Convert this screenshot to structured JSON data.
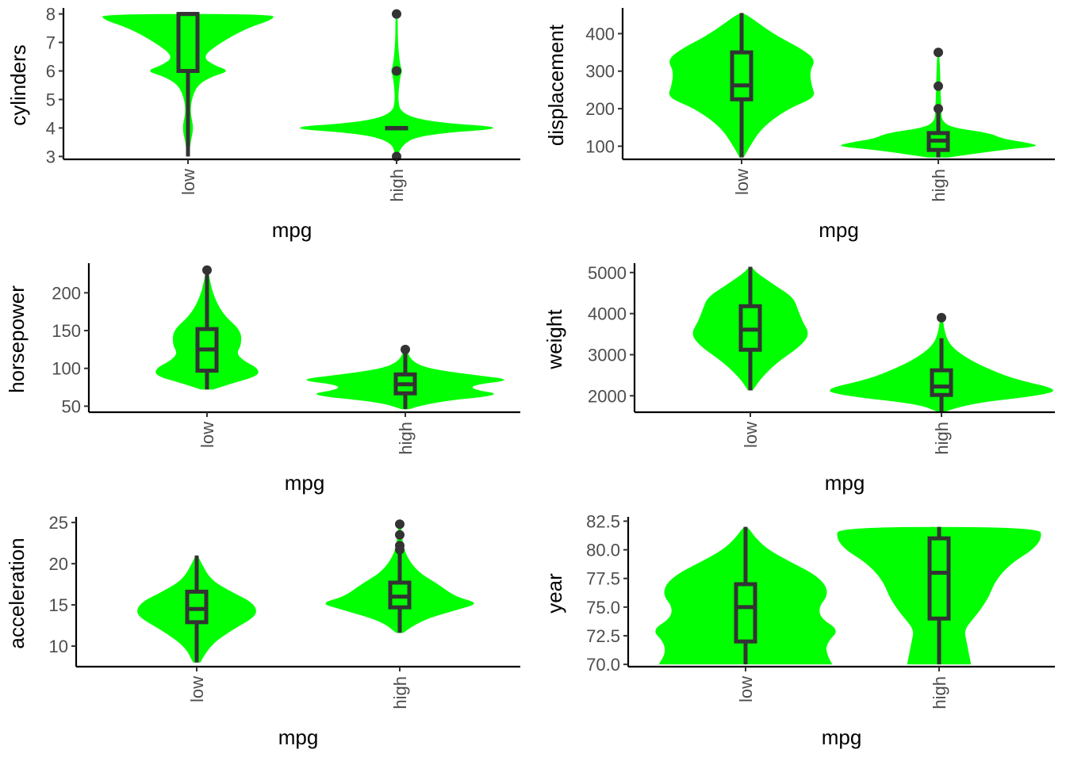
{
  "colors": {
    "violin": "#00ff00",
    "box": "#333333",
    "axis": "#000000",
    "tick_text": "#4d4d4d"
  },
  "chart_data": [
    {
      "type": "violin",
      "xlabel": "mpg",
      "ylabel": "cylinders",
      "categories": [
        "low",
        "high"
      ],
      "ylim": [
        2.9,
        8.1
      ],
      "yticks": [
        3,
        4,
        5,
        6,
        7,
        8
      ],
      "groups": [
        {
          "name": "low",
          "violin": [
            [
              3,
              0.01
            ],
            [
              3.5,
              0.02
            ],
            [
              4,
              0.05
            ],
            [
              4.5,
              0.02
            ],
            [
              5,
              0.03
            ],
            [
              5.5,
              0.08
            ],
            [
              5.8,
              0.2
            ],
            [
              6,
              0.36
            ],
            [
              6.2,
              0.22
            ],
            [
              6.5,
              0.12
            ],
            [
              7,
              0.28
            ],
            [
              7.5,
              0.5
            ],
            [
              7.8,
              0.72
            ],
            [
              8,
              0.74
            ]
          ],
          "box": {
            "lower": 3,
            "q1": 6,
            "median": 8,
            "q3": 8,
            "upper": 8
          },
          "outliers": []
        },
        {
          "name": "high",
          "violin": [
            [
              3,
              0.01
            ],
            [
              3.5,
              0.04
            ],
            [
              3.8,
              0.3
            ],
            [
              4,
              1.0
            ],
            [
              4.2,
              0.3
            ],
            [
              4.5,
              0.04
            ],
            [
              5,
              0.01
            ],
            [
              5.8,
              0.03
            ],
            [
              6,
              0.05
            ],
            [
              6.2,
              0.03
            ],
            [
              7,
              0.01
            ],
            [
              8,
              0.01
            ]
          ],
          "box": {
            "lower": 4,
            "q1": 4,
            "median": 4,
            "q3": 4,
            "upper": 4
          },
          "outliers": [
            3,
            6,
            8
          ]
        }
      ]
    },
    {
      "type": "violin",
      "xlabel": "mpg",
      "ylabel": "displacement",
      "categories": [
        "low",
        "high"
      ],
      "ylim": [
        65,
        460
      ],
      "yticks": [
        100,
        200,
        300,
        400
      ],
      "yticklabels": [
        "100",
        "200",
        "300",
        "400"
      ],
      "groups": [
        {
          "name": "low",
          "violin": [
            [
              70,
              0.02
            ],
            [
              100,
              0.08
            ],
            [
              150,
              0.2
            ],
            [
              200,
              0.45
            ],
            [
              230,
              0.72
            ],
            [
              260,
              0.68
            ],
            [
              300,
              0.66
            ],
            [
              330,
              0.72
            ],
            [
              360,
              0.58
            ],
            [
              400,
              0.3
            ],
            [
              455,
              0.03
            ]
          ],
          "box": {
            "lower": 70,
            "q1": 225,
            "median": 262,
            "q3": 350,
            "upper": 455
          },
          "outliers": []
        },
        {
          "name": "high",
          "violin": [
            [
              70,
              0.1
            ],
            [
              90,
              0.6
            ],
            [
              100,
              1.0
            ],
            [
              110,
              0.85
            ],
            [
              120,
              0.62
            ],
            [
              135,
              0.5
            ],
            [
              150,
              0.12
            ],
            [
              170,
              0.03
            ],
            [
              200,
              0.03
            ],
            [
              250,
              0.02
            ],
            [
              280,
              0.02
            ],
            [
              350,
              0.01
            ]
          ],
          "box": {
            "lower": 70,
            "q1": 90,
            "median": 115,
            "q3": 135,
            "upper": 195
          },
          "outliers": [
            200,
            260,
            350
          ]
        }
      ]
    },
    {
      "type": "violin",
      "xlabel": "mpg",
      "ylabel": "horsepower",
      "categories": [
        "low",
        "high"
      ],
      "ylim": [
        42,
        235
      ],
      "yticks": [
        50,
        100,
        150,
        200
      ],
      "yticklabels": [
        "50",
        "100",
        "150",
        "200"
      ],
      "groups": [
        {
          "name": "low",
          "violin": [
            [
              72,
              0.05
            ],
            [
              80,
              0.2
            ],
            [
              90,
              0.42
            ],
            [
              100,
              0.42
            ],
            [
              110,
              0.3
            ],
            [
              120,
              0.24
            ],
            [
              130,
              0.28
            ],
            [
              150,
              0.28
            ],
            [
              170,
              0.14
            ],
            [
              190,
              0.07
            ],
            [
              210,
              0.03
            ],
            [
              230,
              0.01
            ]
          ],
          "box": {
            "lower": 72,
            "q1": 97,
            "median": 125,
            "q3": 152,
            "upper": 230
          },
          "outliers": [
            230
          ]
        },
        {
          "name": "high",
          "violin": [
            [
              46,
              0.03
            ],
            [
              55,
              0.2
            ],
            [
              65,
              0.82
            ],
            [
              72,
              0.55
            ],
            [
              78,
              0.55
            ],
            [
              85,
              0.9
            ],
            [
              92,
              0.52
            ],
            [
              100,
              0.18
            ],
            [
              110,
              0.05
            ],
            [
              125,
              0.01
            ]
          ],
          "box": {
            "lower": 46,
            "q1": 67,
            "median": 79,
            "q3": 92,
            "upper": 120
          },
          "outliers": [
            125
          ]
        }
      ]
    },
    {
      "type": "violin",
      "xlabel": "mpg",
      "ylabel": "weight",
      "categories": [
        "low",
        "high"
      ],
      "ylim": [
        1600,
        5150
      ],
      "yticks": [
        2000,
        3000,
        4000,
        5000
      ],
      "yticklabels": [
        "2000",
        "3000",
        "4000",
        "5000"
      ],
      "groups": [
        {
          "name": "low",
          "violin": [
            [
              2130,
              0.02
            ],
            [
              2400,
              0.08
            ],
            [
              2800,
              0.22
            ],
            [
              3200,
              0.42
            ],
            [
              3500,
              0.5
            ],
            [
              3800,
              0.44
            ],
            [
              4100,
              0.4
            ],
            [
              4400,
              0.36
            ],
            [
              4700,
              0.2
            ],
            [
              5000,
              0.05
            ],
            [
              5140,
              0.01
            ]
          ],
          "box": {
            "lower": 2130,
            "q1": 3120,
            "median": 3610,
            "q3": 4180,
            "upper": 5140
          },
          "outliers": []
        },
        {
          "name": "high",
          "violin": [
            [
              1610,
              0.03
            ],
            [
              1800,
              0.2
            ],
            [
              2000,
              0.82
            ],
            [
              2150,
              1.0
            ],
            [
              2400,
              0.62
            ],
            [
              2650,
              0.4
            ],
            [
              2900,
              0.22
            ],
            [
              3200,
              0.08
            ],
            [
              3500,
              0.03
            ],
            [
              3900,
              0.01
            ]
          ],
          "box": {
            "lower": 1610,
            "q1": 2020,
            "median": 2225,
            "q3": 2620,
            "upper": 3400
          },
          "outliers": [
            3900
          ]
        }
      ]
    },
    {
      "type": "violin",
      "xlabel": "mpg",
      "ylabel": "acceleration",
      "categories": [
        "low",
        "high"
      ],
      "ylim": [
        7.5,
        25.3
      ],
      "yticks": [
        10,
        15,
        20,
        25
      ],
      "yticklabels": [
        "10",
        "15",
        "20",
        "25"
      ],
      "groups": [
        {
          "name": "low",
          "violin": [
            [
              8,
              0.03
            ],
            [
              10,
              0.1
            ],
            [
              12,
              0.3
            ],
            [
              13.5,
              0.48
            ],
            [
              14.5,
              0.5
            ],
            [
              15.5,
              0.44
            ],
            [
              16.5,
              0.3
            ],
            [
              18,
              0.12
            ],
            [
              20,
              0.04
            ],
            [
              21,
              0.01
            ]
          ],
          "box": {
            "lower": 8,
            "q1": 12.9,
            "median": 14.5,
            "q3": 16.6,
            "upper": 21
          },
          "outliers": []
        },
        {
          "name": "high",
          "violin": [
            [
              11.6,
              0.03
            ],
            [
              13,
              0.15
            ],
            [
              14.5,
              0.5
            ],
            [
              15.2,
              0.66
            ],
            [
              16,
              0.46
            ],
            [
              17.5,
              0.32
            ],
            [
              19,
              0.15
            ],
            [
              21,
              0.05
            ],
            [
              23,
              0.02
            ],
            [
              24.8,
              0.01
            ]
          ],
          "box": {
            "lower": 11.6,
            "q1": 14.7,
            "median": 16,
            "q3": 17.7,
            "upper": 21.5
          },
          "outliers": [
            21.7,
            22.2,
            23.5,
            24.8
          ]
        }
      ]
    },
    {
      "type": "violin",
      "xlabel": "mpg",
      "ylabel": "year",
      "categories": [
        "low",
        "high"
      ],
      "ylim": [
        69.8,
        82.6
      ],
      "yticks": [
        70,
        72.5,
        75,
        77.5,
        80,
        82.5
      ],
      "yticklabels": [
        "70.0",
        "72.5",
        "75.0",
        "77.5",
        "80.0",
        "82.5"
      ],
      "groups": [
        {
          "name": "low",
          "violin": [
            [
              70,
              0.76
            ],
            [
              71,
              0.7
            ],
            [
              72,
              0.72
            ],
            [
              73,
              0.82
            ],
            [
              74,
              0.66
            ],
            [
              75,
              0.64
            ],
            [
              76,
              0.72
            ],
            [
              77,
              0.7
            ],
            [
              78,
              0.58
            ],
            [
              79,
              0.38
            ],
            [
              80,
              0.2
            ],
            [
              81,
              0.09
            ],
            [
              82,
              0.02
            ]
          ],
          "box": {
            "lower": 70,
            "q1": 72,
            "median": 75,
            "q3": 77,
            "upper": 82
          },
          "outliers": []
        },
        {
          "name": "high",
          "violin": [
            [
              70,
              0.28
            ],
            [
              71,
              0.26
            ],
            [
              72,
              0.24
            ],
            [
              73,
              0.22
            ],
            [
              74,
              0.3
            ],
            [
              75,
              0.38
            ],
            [
              76,
              0.44
            ],
            [
              77,
              0.48
            ],
            [
              78,
              0.55
            ],
            [
              79,
              0.66
            ],
            [
              80,
              0.82
            ],
            [
              81,
              0.9
            ],
            [
              82,
              0.88
            ]
          ],
          "box": {
            "lower": 70,
            "q1": 74,
            "median": 78,
            "q3": 81,
            "upper": 82
          },
          "outliers": []
        }
      ]
    }
  ]
}
